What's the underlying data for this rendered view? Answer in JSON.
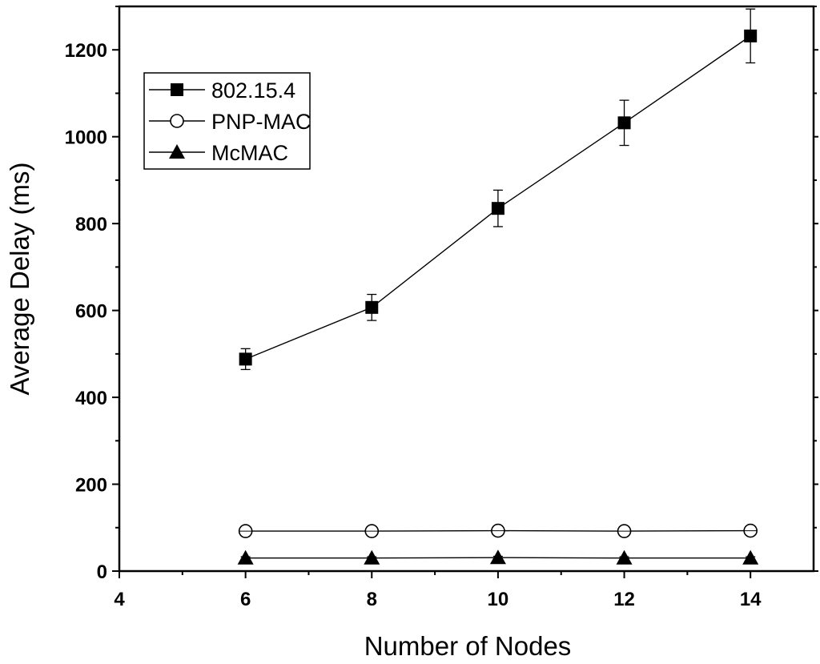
{
  "chart_data": {
    "type": "line",
    "xlabel": "Number of Nodes",
    "ylabel": "Average Delay (ms)",
    "xlim": [
      4,
      15
    ],
    "ylim": [
      0,
      1300
    ],
    "xticks": [
      4,
      6,
      8,
      10,
      12,
      14
    ],
    "yticks": [
      0,
      200,
      400,
      600,
      800,
      1000,
      1200
    ],
    "grid": false,
    "legend_position": "top-left",
    "x": [
      6,
      8,
      10,
      12,
      14
    ],
    "series": [
      {
        "name": "802.15.4",
        "marker": "filled-square",
        "values": [
          488,
          607,
          835,
          1032,
          1232
        ],
        "error": [
          24,
          30,
          42,
          52,
          62
        ]
      },
      {
        "name": "PNP-MAC",
        "marker": "open-circle",
        "values": [
          92,
          92,
          93,
          92,
          93
        ],
        "error": [
          5,
          5,
          5,
          5,
          5
        ]
      },
      {
        "name": "McMAC",
        "marker": "filled-triangle",
        "values": [
          30,
          30,
          31,
          30,
          30
        ],
        "error": [
          3,
          3,
          3,
          3,
          3
        ]
      }
    ]
  }
}
